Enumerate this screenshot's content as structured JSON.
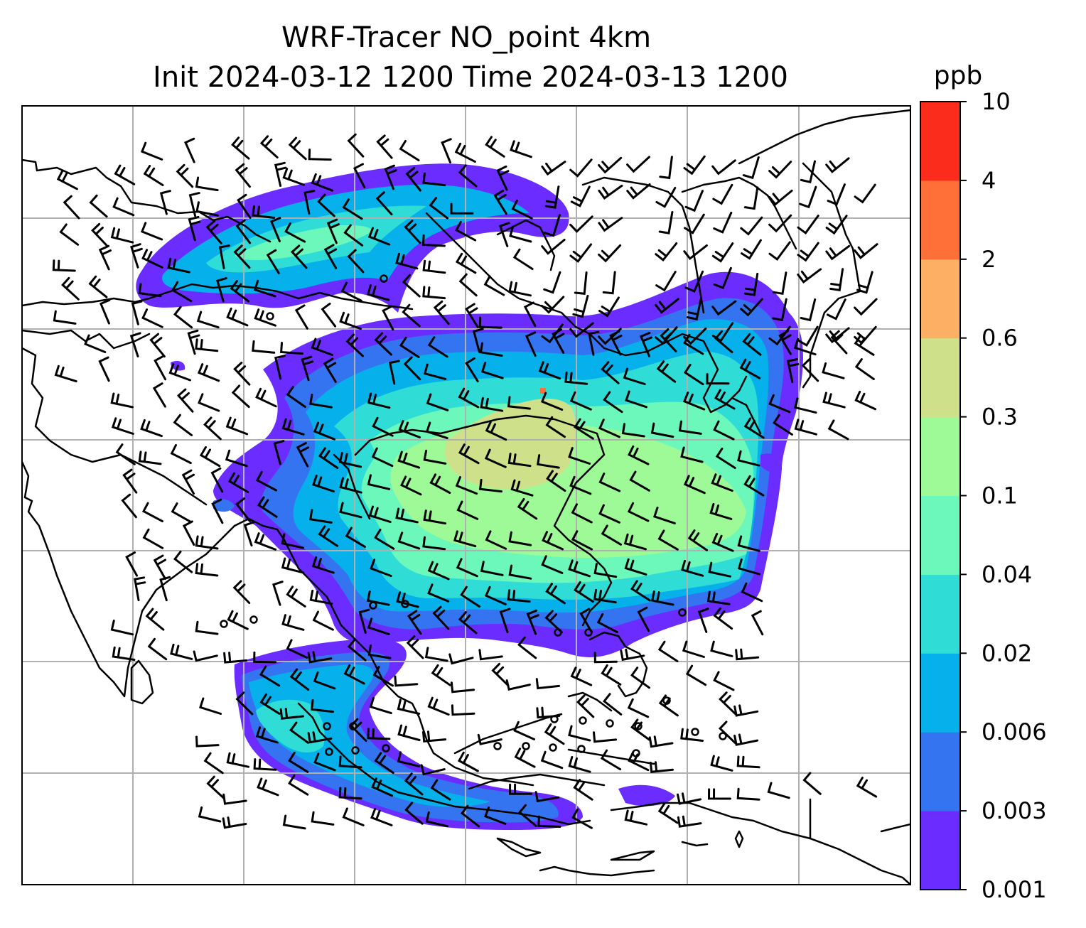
{
  "title": {
    "line1": "WRF-Tracer NO_point 4km",
    "line2": "Init 2024-03-12 1200 Time 2024-03-13 1200"
  },
  "colorbar": {
    "unit": "ppb",
    "levels": [
      "0.001",
      "0.003",
      "0.006",
      "0.02",
      "0.04",
      "0.1",
      "0.3",
      "0.6",
      "2",
      "4",
      "10"
    ],
    "colors": [
      "#6a2cff",
      "#3574f0",
      "#06b0ea",
      "#2fdcd6",
      "#6cf7bb",
      "#9dfa96",
      "#cfe08a",
      "#fdb063",
      "#ff7039",
      "#fb2c1c"
    ]
  },
  "map": {
    "gridlines": true,
    "gridline_color": "#b0b0b0",
    "coastline_color": "#000000",
    "barb_color": "#000000",
    "field_colors": {
      "lowest": "#6a2cff",
      "low": "#3574f0",
      "mid_low": "#06b0ea",
      "mid": "#2fdcd6",
      "mid_high": "#6cf7bb",
      "high": "#9dfa96",
      "peak": "#cfe08a"
    }
  }
}
